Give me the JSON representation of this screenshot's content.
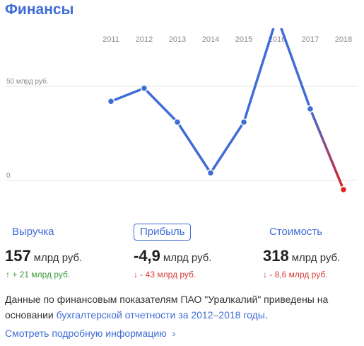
{
  "page": {
    "title": "Финансы"
  },
  "chart_data": {
    "type": "line",
    "x": [
      "2011",
      "2012",
      "2013",
      "2014",
      "2015",
      "2016",
      "2017",
      "2018"
    ],
    "series": [
      {
        "values": [
          42,
          49,
          31,
          4,
          31,
          87,
          38,
          -4.9
        ]
      }
    ],
    "y_gridlines": [
      {
        "value": 50,
        "label": "50 млрд руб."
      },
      {
        "value": 0,
        "label": "0"
      }
    ],
    "ylim": [
      -10,
      95
    ],
    "colors": {
      "line": "#3f6cd6",
      "negative_point": "#e02424",
      "grid": "#e3e3e3",
      "tick_text": "#888888"
    }
  },
  "tabs": [
    {
      "label": "Выручка",
      "active": false
    },
    {
      "label": "Прибыль",
      "active": true
    },
    {
      "label": "Стоимость",
      "active": false
    }
  ],
  "metrics": [
    {
      "value": "157",
      "unit": "млрд руб.",
      "delta": "↑ + 21 млрд руб.",
      "direction": "up"
    },
    {
      "value": "-4,9",
      "unit": "млрд руб.",
      "delta": "↓ - 43 млрд руб.",
      "direction": "down"
    },
    {
      "value": "318",
      "unit": "млрд руб.",
      "delta": "↓ - 8,6 млрд руб.",
      "direction": "down"
    }
  ],
  "note": {
    "text": "Данные по финансовым показателям ПАО \"Уралкалий\" приведены на основании ",
    "link": "бухгалтерской отчетности за 2012–2018 годы",
    "end": "."
  },
  "more_link": "Смотреть подробную информацию",
  "icons": {
    "more_chevron": "chevron-right-icon",
    "up_arrow": "arrow-up-icon",
    "down_arrow": "arrow-down-icon"
  },
  "colors": {
    "accent": "#3f6cd6",
    "up": "#3a9a3a",
    "down": "#d83a3a"
  }
}
